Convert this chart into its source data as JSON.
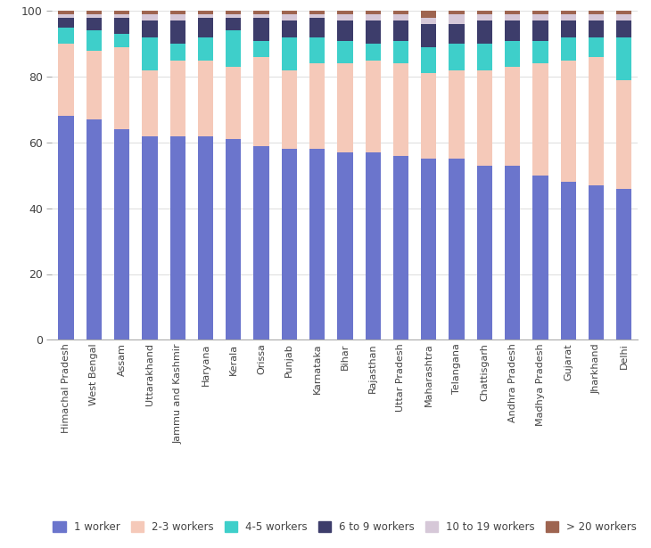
{
  "states": [
    "Himachal Pradesh",
    "West Bengal",
    "Assam",
    "Uttarakhand",
    "Jammu and Kashmir",
    "Haryana",
    "Kerala",
    "Orissa",
    "Punjab",
    "Karnataka",
    "Bihar",
    "Rajasthan",
    "Uttar Pradesh",
    "Maharashtra",
    "Telangana",
    "Chattisgarh",
    "Andhra Pradesh",
    "Madhya Pradesh",
    "Gujarat",
    "Jharkhand",
    "Delhi"
  ],
  "worker_1": [
    68,
    67,
    64,
    62,
    62,
    62,
    61,
    59,
    58,
    58,
    57,
    57,
    56,
    55,
    55,
    53,
    53,
    50,
    48,
    47,
    46
  ],
  "worker_2_3": [
    22,
    21,
    25,
    20,
    23,
    23,
    22,
    27,
    24,
    26,
    27,
    28,
    28,
    26,
    27,
    29,
    30,
    34,
    37,
    39,
    33
  ],
  "worker_4_5": [
    5,
    6,
    4,
    10,
    5,
    7,
    11,
    5,
    10,
    8,
    7,
    5,
    7,
    8,
    8,
    8,
    8,
    7,
    7,
    6,
    13
  ],
  "worker_6_9": [
    3,
    4,
    5,
    5,
    7,
    6,
    4,
    7,
    5,
    6,
    6,
    7,
    6,
    7,
    6,
    7,
    6,
    6,
    5,
    5,
    5
  ],
  "worker_10_19": [
    1,
    1,
    1,
    2,
    2,
    1,
    1,
    1,
    2,
    1,
    2,
    2,
    2,
    2,
    3,
    2,
    2,
    2,
    2,
    2,
    2
  ],
  "worker_20plus": [
    1,
    1,
    1,
    1,
    1,
    1,
    1,
    1,
    1,
    1,
    1,
    1,
    1,
    2,
    1,
    1,
    1,
    1,
    1,
    1,
    1
  ],
  "colors": {
    "1 worker": "#6b75cc",
    "2-3 workers": "#f5c9b9",
    "4-5 workers": "#3ecfca",
    "6 to 9 workers": "#3d3d6b",
    "10 to 19 workers": "#d6c8d8",
    "> 20 workers": "#9e6450"
  },
  "legend_labels": [
    "1 worker",
    "2-3 workers",
    "4-5 workers",
    "6 to 9 workers",
    "10 to 19 workers",
    "> 20 workers"
  ],
  "ylim": [
    0,
    100
  ],
  "yticks": [
    0,
    20,
    40,
    60,
    80,
    100
  ],
  "background_color": "#ffffff",
  "bar_width": 0.55
}
